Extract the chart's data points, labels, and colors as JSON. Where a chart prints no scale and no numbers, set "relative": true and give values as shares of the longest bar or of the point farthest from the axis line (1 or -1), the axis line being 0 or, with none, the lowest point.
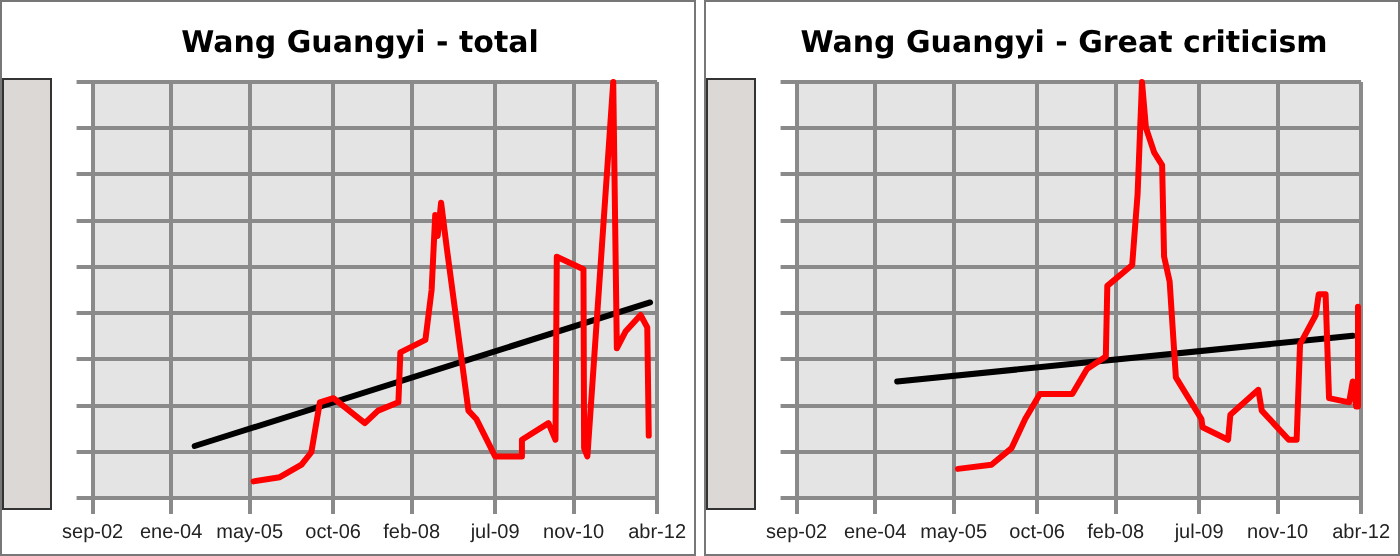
{
  "chart_data": [
    {
      "type": "line",
      "title": "Wang Guangyi - total",
      "relative": true,
      "xlim": [
        "2002-09",
        "2012-04"
      ],
      "xticks": [
        {
          "value": "2002-09",
          "label": "sep-02"
        },
        {
          "value": "2004-01",
          "label": "ene-04"
        },
        {
          "value": "2005-05",
          "label": "may-05"
        },
        {
          "value": "2006-10",
          "label": "oct-06"
        },
        {
          "value": "2008-02",
          "label": "feb-08"
        },
        {
          "value": "2009-07",
          "label": "jul-09"
        },
        {
          "value": "2010-11",
          "label": "nov-10"
        },
        {
          "value": "2012-04",
          "label": "abr-12"
        }
      ],
      "grid": true,
      "legend": false,
      "marker": "none",
      "series": [
        {
          "color": "#ff0000",
          "x": [
            "2005-05-25",
            "2005-11-05",
            "2006-03-18",
            "2006-05-18",
            "2006-07-10",
            "2006-10-03",
            "2007-04-15",
            "2007-07-06",
            "2007-11-10",
            "2007-11-22",
            "2008-04-25",
            "2008-06-03",
            "2008-06-25",
            "2008-07-10",
            "2008-08-01",
            "2008-09-06",
            "2009-01-18",
            "2009-03-06",
            "2009-07-01",
            "2009-12-06",
            "2009-12-15",
            "2010-05-27",
            "2010-07-10",
            "2010-07-18",
            "2011-01-01",
            "2011-01-05",
            "2011-01-25",
            "2011-07-03",
            "2011-07-25",
            "2011-09-18",
            "2011-12-20",
            "2012-02-01",
            "2012-02-10"
          ],
          "values": [
            0.04,
            0.05,
            0.08,
            0.11,
            0.23,
            0.24,
            0.18,
            0.21,
            0.23,
            0.35,
            0.38,
            0.5,
            0.68,
            0.63,
            0.71,
            0.6,
            0.21,
            0.19,
            0.1,
            0.1,
            0.14,
            0.18,
            0.14,
            0.58,
            0.55,
            0.12,
            0.1,
            1.0,
            0.36,
            0.4,
            0.44,
            0.41,
            0.15
          ]
        },
        {
          "color": "#000000",
          "x": [
            "2004-05-25",
            "2012-02-18"
          ],
          "values": [
            0.125,
            0.47
          ]
        }
      ]
    },
    {
      "type": "line",
      "title": "Wang Guangyi - Great criticism",
      "relative": true,
      "xlim": [
        "2002-09",
        "2012-04"
      ],
      "xticks": [
        {
          "value": "2002-09",
          "label": "sep-02"
        },
        {
          "value": "2004-01",
          "label": "ene-04"
        },
        {
          "value": "2005-05",
          "label": "may-05"
        },
        {
          "value": "2006-10",
          "label": "oct-06"
        },
        {
          "value": "2008-02",
          "label": "feb-08"
        },
        {
          "value": "2009-07",
          "label": "jul-09"
        },
        {
          "value": "2010-11",
          "label": "nov-10"
        },
        {
          "value": "2012-04",
          "label": "abr-12"
        }
      ],
      "grid": true,
      "legend": false,
      "marker": "none",
      "series": [
        {
          "color": "#ff0000",
          "x": [
            "2005-05-27",
            "2005-12-22",
            "2006-04-25",
            "2006-07-18",
            "2006-10-18",
            "2007-05-06",
            "2007-08-06",
            "2007-12-01",
            "2007-12-10",
            "2008-05-12",
            "2008-06-15",
            "2008-07-12",
            "2008-08-06",
            "2008-09-27",
            "2008-11-15",
            "2008-11-27",
            "2009-01-01",
            "2009-02-09",
            "2009-07-15",
            "2009-07-22",
            "2009-12-28",
            "2010-01-12",
            "2010-07-03",
            "2010-07-24",
            "2011-01-09",
            "2011-02-27",
            "2011-03-18",
            "2011-06-24",
            "2011-07-12",
            "2011-08-24",
            "2011-09-15",
            "2012-01-18",
            "2012-02-10",
            "2012-03-01",
            "2012-03-12"
          ],
          "values": [
            0.07,
            0.08,
            0.12,
            0.19,
            0.25,
            0.25,
            0.31,
            0.34,
            0.51,
            0.56,
            0.73,
            1.0,
            0.89,
            0.83,
            0.8,
            0.58,
            0.52,
            0.29,
            0.19,
            0.17,
            0.14,
            0.2,
            0.26,
            0.21,
            0.14,
            0.14,
            0.37,
            0.44,
            0.49,
            0.49,
            0.24,
            0.23,
            0.28,
            0.22,
            0.46
          ]
        },
        {
          "color": "#000000",
          "x": [
            "2004-05-16",
            "2012-02-10"
          ],
          "values": [
            0.28,
            0.39
          ]
        }
      ]
    }
  ]
}
